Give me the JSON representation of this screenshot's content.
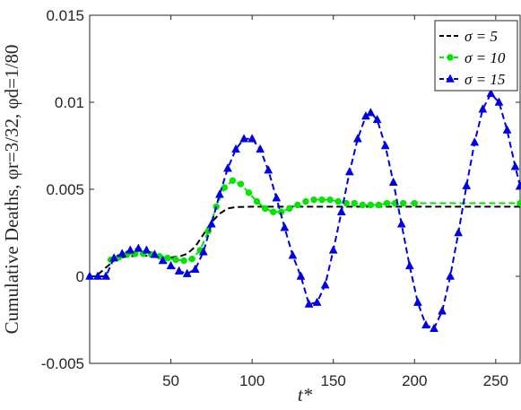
{
  "chart_data": {
    "type": "line",
    "xlabel": "t*",
    "ylabel": "Cumulative Deaths, φr=3/32, φd=1/80",
    "xlim": [
      0,
      265
    ],
    "ylim": [
      -0.005,
      0.015
    ],
    "xticks": [
      50,
      100,
      150,
      200,
      250
    ],
    "xtick_labels": [
      "50",
      "100",
      "150",
      "200",
      "250"
    ],
    "yticks": [
      -0.005,
      0,
      0.005,
      0.01,
      0.015
    ],
    "ytick_labels": [
      "-0.005",
      "0",
      "0.005",
      "0.01",
      "0.015"
    ],
    "grid": false,
    "legend_position": "top-right",
    "series": [
      {
        "name": "σ = 5",
        "color": "#000000",
        "style": "dashed",
        "marker": "none",
        "points": [
          [
            5,
            0.0001
          ],
          [
            10,
            0.0005
          ],
          [
            15,
            0.0009
          ],
          [
            20,
            0.0011
          ],
          [
            25,
            0.00115
          ],
          [
            30,
            0.0012
          ],
          [
            35,
            0.00118
          ],
          [
            40,
            0.00113
          ],
          [
            45,
            0.0011
          ],
          [
            50,
            0.00109
          ],
          [
            55,
            0.00113
          ],
          [
            60,
            0.0013
          ],
          [
            65,
            0.0017
          ],
          [
            70,
            0.0024
          ],
          [
            75,
            0.0031
          ],
          [
            80,
            0.0036
          ],
          [
            85,
            0.0039
          ],
          [
            90,
            0.00398
          ],
          [
            100,
            0.004
          ],
          [
            130,
            0.004
          ],
          [
            265,
            0.004
          ]
        ]
      },
      {
        "name": "σ = 10",
        "color": "#00e600",
        "style": "dashed",
        "marker": "circle",
        "points": [
          [
            13,
            0.00095
          ],
          [
            18,
            0.0011
          ],
          [
            23,
            0.00125
          ],
          [
            28,
            0.0013
          ],
          [
            33,
            0.0013
          ],
          [
            38,
            0.00125
          ],
          [
            43,
            0.00115
          ],
          [
            48,
            0.00105
          ],
          [
            53,
            0.00095
          ],
          [
            58,
            0.0009
          ],
          [
            63,
            0.001
          ],
          [
            68,
            0.0015
          ],
          [
            73,
            0.0026
          ],
          [
            78,
            0.004
          ],
          [
            83,
            0.0051
          ],
          [
            88,
            0.0055
          ],
          [
            93,
            0.0053
          ],
          [
            98,
            0.0048
          ],
          [
            103,
            0.0043
          ],
          [
            108,
            0.0039
          ],
          [
            113,
            0.0037
          ],
          [
            118,
            0.0037
          ],
          [
            123,
            0.0039
          ],
          [
            128,
            0.0041
          ],
          [
            133,
            0.0043
          ],
          [
            138,
            0.0044
          ],
          [
            143,
            0.0044
          ],
          [
            148,
            0.0044
          ],
          [
            153,
            0.0043
          ],
          [
            158,
            0.0042
          ],
          [
            163,
            0.0042
          ],
          [
            168,
            0.0041
          ],
          [
            173,
            0.0041
          ],
          [
            178,
            0.0041
          ],
          [
            183,
            0.0042
          ],
          [
            188,
            0.0042
          ],
          [
            193,
            0.0042
          ],
          [
            200,
            0.0042
          ],
          [
            265,
            0.0042
          ]
        ]
      },
      {
        "name": "σ = 15",
        "color": "#0000e6",
        "style": "dashed",
        "marker": "triangle",
        "points": [
          [
            0,
            0.0
          ],
          [
            5,
            0.0
          ],
          [
            10,
            0.0
          ],
          [
            15,
            0.00105
          ],
          [
            20,
            0.0013
          ],
          [
            25,
            0.0015
          ],
          [
            30,
            0.0016
          ],
          [
            35,
            0.0015
          ],
          [
            40,
            0.00125
          ],
          [
            45,
            0.0009
          ],
          [
            50,
            0.0006
          ],
          [
            55,
            0.0003
          ],
          [
            60,
            0.00015
          ],
          [
            65,
            0.0004
          ],
          [
            70,
            0.0014
          ],
          [
            75,
            0.003
          ],
          [
            80,
            0.0047
          ],
          [
            85,
            0.0062
          ],
          [
            90,
            0.0073
          ],
          [
            95,
            0.0079
          ],
          [
            100,
            0.0079
          ],
          [
            105,
            0.0073
          ],
          [
            110,
            0.0061
          ],
          [
            115,
            0.0045
          ],
          [
            120,
            0.0028
          ],
          [
            125,
            0.0012
          ],
          [
            130,
            0.0
          ],
          [
            135,
            -0.0016
          ],
          [
            140,
            -0.0015
          ],
          [
            145,
            -0.0005
          ],
          [
            150,
            0.0015
          ],
          [
            155,
            0.0037
          ],
          [
            160,
            0.006
          ],
          [
            165,
            0.0079
          ],
          [
            170,
            0.0092
          ],
          [
            173,
            0.0094
          ],
          [
            177,
            0.009
          ],
          [
            182,
            0.0075
          ],
          [
            187,
            0.0054
          ],
          [
            192,
            0.003
          ],
          [
            197,
            0.0006
          ],
          [
            202,
            -0.0015
          ],
          [
            207,
            -0.0028
          ],
          [
            212,
            -0.003
          ],
          [
            217,
            -0.002
          ],
          [
            222,
            0.0
          ],
          [
            227,
            0.0025
          ],
          [
            232,
            0.0052
          ],
          [
            237,
            0.0077
          ],
          [
            242,
            0.0096
          ],
          [
            247,
            0.0105
          ],
          [
            252,
            0.01
          ],
          [
            257,
            0.0084
          ],
          [
            262,
            0.0063
          ],
          [
            265,
            0.0052
          ]
        ]
      }
    ]
  }
}
